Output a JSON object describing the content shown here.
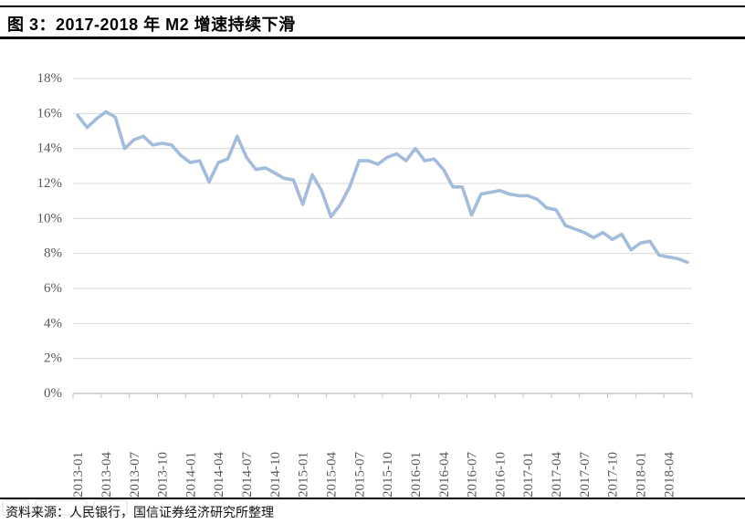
{
  "figure": {
    "title": "图 3：2017-2018 年 M2 增速持续下滑",
    "source_note": "资料来源：人民银行，国信证券经济研究所整理"
  },
  "colors": {
    "line": "#A3BCDC",
    "gridline": "#D9D9D9",
    "axis": "#BFBFBF",
    "tick_label": "#595959",
    "rule": "#000000",
    "background": "#FFFFFF"
  },
  "chart_data": {
    "type": "line",
    "title": "图 3：2017-2018 年 M2 增速持续下滑",
    "xlabel": "",
    "ylabel": "",
    "ylim": [
      0,
      18
    ],
    "ytick_step": 2,
    "grid": true,
    "legend": false,
    "x": [
      "2013-01",
      "2013-02",
      "2013-03",
      "2013-04",
      "2013-05",
      "2013-06",
      "2013-07",
      "2013-08",
      "2013-09",
      "2013-10",
      "2013-11",
      "2013-12",
      "2014-01",
      "2014-02",
      "2014-03",
      "2014-04",
      "2014-05",
      "2014-06",
      "2014-07",
      "2014-08",
      "2014-09",
      "2014-10",
      "2014-11",
      "2014-12",
      "2015-01",
      "2015-02",
      "2015-03",
      "2015-04",
      "2015-05",
      "2015-06",
      "2015-07",
      "2015-08",
      "2015-09",
      "2015-10",
      "2015-11",
      "2015-12",
      "2016-01",
      "2016-02",
      "2016-03",
      "2016-04",
      "2016-05",
      "2016-06",
      "2016-07",
      "2016-08",
      "2016-09",
      "2016-10",
      "2016-11",
      "2016-12",
      "2017-01",
      "2017-02",
      "2017-03",
      "2017-04",
      "2017-05",
      "2017-06",
      "2017-07",
      "2017-08",
      "2017-09",
      "2017-10",
      "2017-11",
      "2017-12",
      "2018-01",
      "2018-02",
      "2018-03",
      "2018-04",
      "2018-05",
      "2018-06"
    ],
    "values": [
      15.9,
      15.2,
      15.7,
      16.1,
      15.8,
      14.0,
      14.5,
      14.7,
      14.2,
      14.3,
      14.2,
      13.6,
      13.2,
      13.3,
      12.1,
      13.2,
      13.4,
      14.7,
      13.5,
      12.8,
      12.9,
      12.6,
      12.3,
      12.2,
      10.8,
      12.5,
      11.6,
      10.1,
      10.8,
      11.8,
      13.3,
      13.3,
      13.1,
      13.5,
      13.7,
      13.3,
      14.0,
      13.3,
      13.4,
      12.8,
      11.8,
      11.8,
      10.2,
      11.4,
      11.5,
      11.6,
      11.4,
      11.3,
      11.3,
      11.1,
      10.6,
      10.5,
      9.6,
      9.4,
      9.2,
      8.9,
      9.2,
      8.8,
      9.1,
      8.2,
      8.6,
      8.7,
      7.9,
      7.8,
      7.7,
      7.5
    ],
    "ytick_labels": [
      "18%",
      "16%",
      "14%",
      "12%",
      "10%",
      "8%",
      "6%",
      "4%",
      "2%",
      "0%"
    ],
    "xtick_labels": [
      "2013-01",
      "2013-04",
      "2013-07",
      "2013-10",
      "2014-01",
      "2014-04",
      "2014-07",
      "2014-10",
      "2015-01",
      "2015-04",
      "2015-07",
      "2015-10",
      "2016-01",
      "2016-04",
      "2016-07",
      "2016-10",
      "2017-01",
      "2017-04",
      "2017-07",
      "2017-10",
      "2018-01",
      "2018-04"
    ],
    "xtick_every": 3
  }
}
